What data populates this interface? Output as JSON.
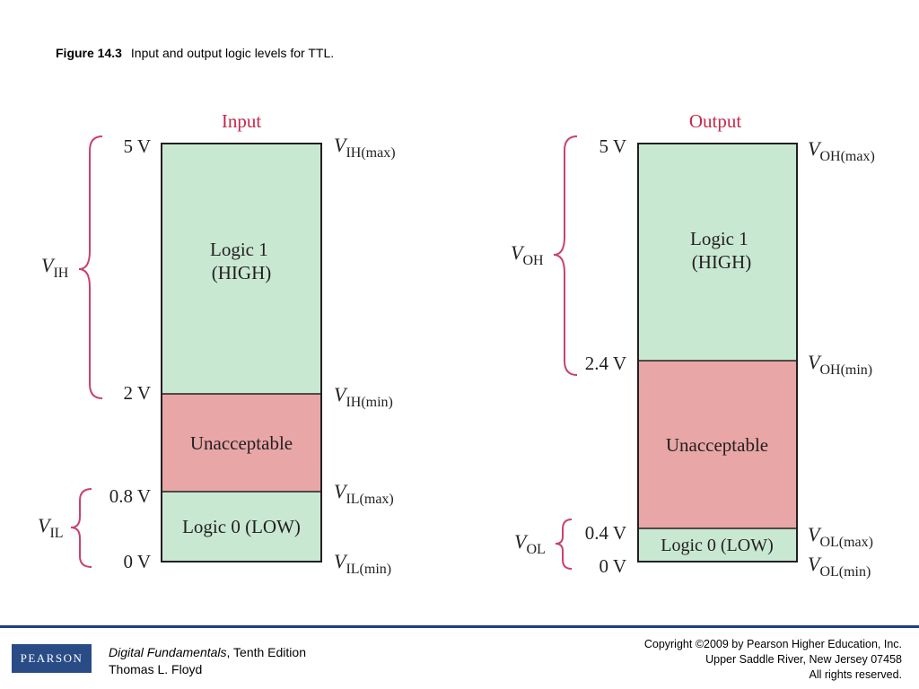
{
  "caption": {
    "label": "Figure 14.3",
    "text": "Input and output logic levels for TTL."
  },
  "input": {
    "title": "Input",
    "bands": {
      "high": [
        "Logic 1",
        "(HIGH)"
      ],
      "unacceptable": "Unacceptable",
      "low": "Logic 0 (LOW)"
    },
    "levels": {
      "top": "5 V",
      "high_min": "2 V",
      "low_max": "0.8 V",
      "bottom": "0 V"
    },
    "params": {
      "top": {
        "sym": "V",
        "sub": "IH(max)"
      },
      "high_min": {
        "sym": "V",
        "sub": "IH(min)"
      },
      "low_max": {
        "sym": "V",
        "sub": "IL(max)"
      },
      "bottom": {
        "sym": "V",
        "sub": "IL(min)"
      }
    },
    "ranges": {
      "high": {
        "sym": "V",
        "sub": "IH"
      },
      "low": {
        "sym": "V",
        "sub": "IL"
      }
    }
  },
  "output": {
    "title": "Output",
    "bands": {
      "high": [
        "Logic 1",
        "(HIGH)"
      ],
      "unacceptable": "Unacceptable",
      "low": "Logic 0 (LOW)"
    },
    "levels": {
      "top": "5 V",
      "high_min": "2.4 V",
      "low_max": "0.4 V",
      "bottom": "0 V"
    },
    "params": {
      "top": {
        "sym": "V",
        "sub": "OH(max)"
      },
      "high_min": {
        "sym": "V",
        "sub": "OH(min)"
      },
      "low_max": {
        "sym": "V",
        "sub": "OL(max)"
      },
      "bottom": {
        "sym": "V",
        "sub": "OL(min)"
      }
    },
    "ranges": {
      "high": {
        "sym": "V",
        "sub": "OH"
      },
      "low": {
        "sym": "V",
        "sub": "OL"
      }
    }
  },
  "colors": {
    "green": "#c9e8d2",
    "red": "#e8a6a6",
    "title": "#c4284a",
    "brace": "#c8426e",
    "footer": "#1f3f7a"
  },
  "footer": {
    "logo": "PEARSON",
    "book_title": "Digital Fundamentals",
    "edition": ", Tenth Edition",
    "author": "Thomas L. Floyd",
    "copyright_1": "Copyright ©2009 by Pearson Higher Education, Inc.",
    "copyright_2": "Upper Saddle River, New Jersey 07458",
    "copyright_3": "All rights reserved."
  }
}
